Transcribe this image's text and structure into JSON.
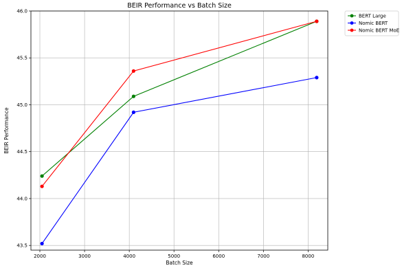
{
  "chart_data": {
    "type": "line",
    "title": "BEIR Performance vs Batch Size",
    "xlabel": "Batch Size",
    "ylabel": "BEIR Performance",
    "x": [
      2048,
      4096,
      8192
    ],
    "xlim": [
      1800,
      8440
    ],
    "ylim": [
      43.45,
      46.0
    ],
    "xticks": [
      2000,
      3000,
      4000,
      5000,
      6000,
      7000,
      8000
    ],
    "yticks": [
      43.5,
      44.0,
      44.5,
      45.0,
      45.5,
      46.0
    ],
    "xtick_labels": [
      "2000",
      "3000",
      "4000",
      "5000",
      "6000",
      "7000",
      "8000"
    ],
    "ytick_labels": [
      "43.5",
      "44.0",
      "44.5",
      "45.0",
      "45.5",
      "46.0"
    ],
    "grid": true,
    "legend_position": "outside top-right",
    "series": [
      {
        "name": "BERT Large",
        "color": "#008000",
        "values": [
          44.24,
          45.09,
          45.89
        ]
      },
      {
        "name": "Nomic BERT",
        "color": "#0000ff",
        "values": [
          43.52,
          44.92,
          45.29
        ]
      },
      {
        "name": "Nomic BERT MoE",
        "color": "#ff0000",
        "values": [
          44.13,
          45.36,
          45.89
        ]
      }
    ]
  }
}
